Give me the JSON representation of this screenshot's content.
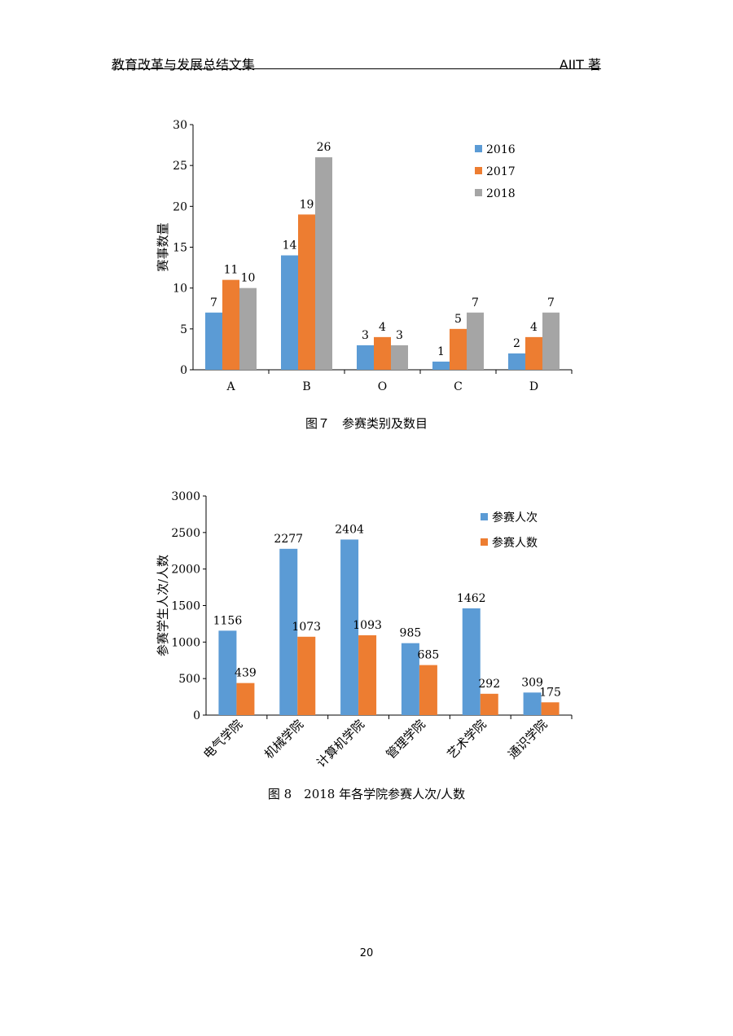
{
  "header": {
    "title": "教育改革与发展总结文集",
    "author": "AIIT 著"
  },
  "page_number": "20",
  "chart_data": [
    {
      "type": "bar",
      "caption": "图７　参赛类别及数目",
      "ylabel": "赛事数量",
      "ylim": [
        0,
        30
      ],
      "yticks": [
        0,
        5,
        10,
        15,
        20,
        25,
        30
      ],
      "categories": [
        "A",
        "B",
        "O",
        "C",
        "D"
      ],
      "series": [
        {
          "name": "2016",
          "color": "#5b9bd5",
          "values": [
            7,
            14,
            3,
            1,
            2
          ]
        },
        {
          "name": "2017",
          "color": "#ed7d31",
          "values": [
            11,
            19,
            4,
            5,
            4
          ]
        },
        {
          "name": "2018",
          "color": "#a5a5a5",
          "values": [
            10,
            26,
            3,
            7,
            7
          ]
        }
      ],
      "legend": "top-right"
    },
    {
      "type": "bar",
      "caption": "图 8　2018 年各学院参赛人次/人数",
      "ylabel": "参赛学生人次/人数",
      "ylim": [
        0,
        3000
      ],
      "yticks": [
        0,
        500,
        1000,
        1500,
        2000,
        2500,
        3000
      ],
      "categories": [
        "电气学院",
        "机械学院",
        "计算机学院",
        "管理学院",
        "艺术学院",
        "通识学院"
      ],
      "series": [
        {
          "name": "参赛人次",
          "color": "#5b9bd5",
          "values": [
            1156,
            2277,
            2404,
            985,
            1462,
            309
          ]
        },
        {
          "name": "参赛人数",
          "color": "#ed7d31",
          "values": [
            439,
            1073,
            1093,
            685,
            292,
            175
          ]
        }
      ],
      "legend": "top-right"
    }
  ]
}
